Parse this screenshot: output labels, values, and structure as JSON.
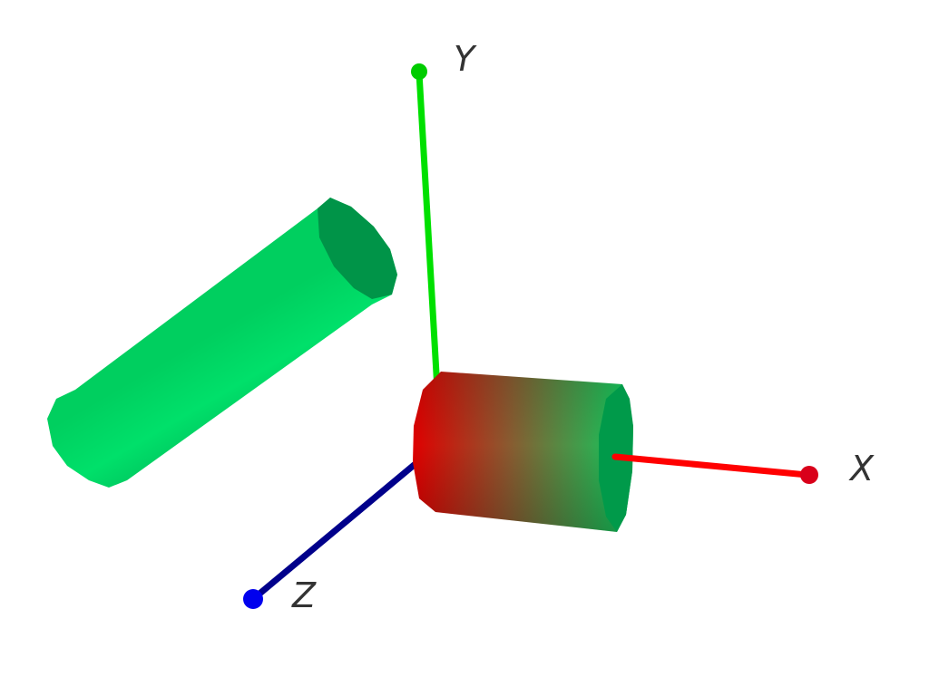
{
  "scene": {
    "background": "#ffffff",
    "label_color": "#333333"
  },
  "axes": [
    {
      "id": "x",
      "label": "X",
      "color": "#ff0000",
      "tip_color": "#d9001a"
    },
    {
      "id": "y",
      "label": "Y",
      "color": "#00e000",
      "tip_color": "#00cc00"
    },
    {
      "id": "z",
      "label": "Z",
      "color": "#00008b",
      "tip_color": "#0000ee"
    }
  ],
  "objects": [
    {
      "id": "tilted-cylinder",
      "fill": "#00cf5f",
      "highlight": "#00e06a",
      "shadow": "#00b557",
      "cap": "#009448"
    },
    {
      "id": "gradient-cylinder",
      "start_color": "#e00000",
      "mid_color": "#8a5a30",
      "end_color": "#12c85c",
      "cap": "#009a4a"
    }
  ]
}
